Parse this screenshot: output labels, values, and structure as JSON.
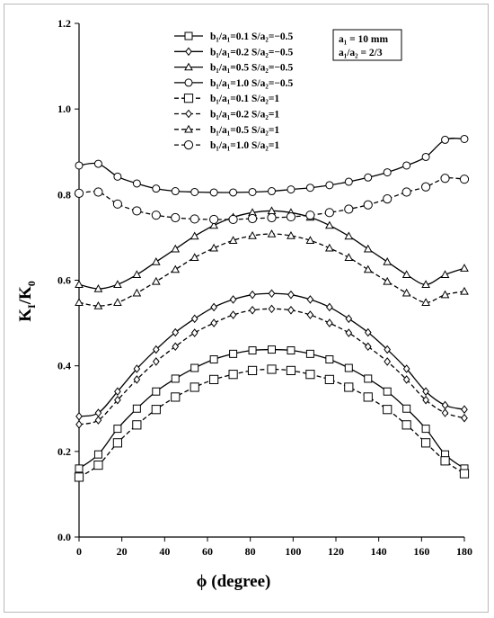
{
  "chart_data": {
    "type": "line",
    "xlabel": "ϕ (degree)",
    "ylabel_main": "K",
    "ylabel_sub1": "I",
    "ylabel_slash": "/K",
    "ylabel_sub2": "0",
    "xlim": [
      0,
      180
    ],
    "ylim": [
      0.0,
      1.2
    ],
    "x_ticks": [
      0,
      20,
      40,
      60,
      80,
      100,
      120,
      140,
      160,
      180
    ],
    "y_ticks": [
      "0.0",
      "0.2",
      "0.4",
      "0.6",
      "0.8",
      "1.0",
      "1.2"
    ],
    "grid": false,
    "legend_position": "top-center",
    "annotation_lines": [
      "a₁ = 10 mm",
      "a₁/a₂ = 2/3"
    ],
    "x": [
      0,
      9,
      18,
      27,
      36,
      45,
      54,
      63,
      72,
      81,
      90,
      99,
      108,
      117,
      126,
      135,
      144,
      153,
      162,
      171,
      180
    ],
    "series": [
      {
        "name": "b₁/a₁=0.1  S/a₂=−0.5",
        "marker": "square",
        "dashed": false,
        "values": [
          0.16,
          0.193,
          0.253,
          0.3,
          0.34,
          0.37,
          0.395,
          0.415,
          0.428,
          0.436,
          0.438,
          0.436,
          0.428,
          0.415,
          0.395,
          0.37,
          0.34,
          0.3,
          0.253,
          0.193,
          0.16
        ]
      },
      {
        "name": "b₁/a₁=0.2  S/a₂=−0.5",
        "marker": "diamond",
        "dashed": false,
        "values": [
          0.282,
          0.29,
          0.34,
          0.393,
          0.438,
          0.478,
          0.51,
          0.537,
          0.555,
          0.566,
          0.569,
          0.566,
          0.555,
          0.537,
          0.51,
          0.478,
          0.438,
          0.393,
          0.34,
          0.308,
          0.298
        ]
      },
      {
        "name": "b₁/a₁=0.5  S/a₂=−0.5",
        "marker": "triangle",
        "dashed": false,
        "values": [
          0.59,
          0.58,
          0.59,
          0.613,
          0.643,
          0.673,
          0.703,
          0.728,
          0.747,
          0.758,
          0.762,
          0.758,
          0.747,
          0.728,
          0.703,
          0.673,
          0.643,
          0.613,
          0.59,
          0.613,
          0.628
        ]
      },
      {
        "name": "b₁/a₁=1.0  S/a₂=−0.5",
        "marker": "circle",
        "dashed": false,
        "values": [
          0.868,
          0.872,
          0.842,
          0.826,
          0.814,
          0.808,
          0.806,
          0.805,
          0.805,
          0.806,
          0.808,
          0.812,
          0.816,
          0.822,
          0.83,
          0.84,
          0.852,
          0.868,
          0.888,
          0.928,
          0.93
        ]
      },
      {
        "name": "b₁/a₁=0.1  S/a₂=1",
        "marker": "square",
        "dashed": true,
        "values": [
          0.14,
          0.168,
          0.22,
          0.262,
          0.298,
          0.327,
          0.35,
          0.368,
          0.38,
          0.389,
          0.392,
          0.389,
          0.38,
          0.368,
          0.35,
          0.327,
          0.298,
          0.262,
          0.22,
          0.178,
          0.148
        ]
      },
      {
        "name": "b₁/a₁=0.2  S/a₂=1",
        "marker": "diamond",
        "dashed": true,
        "values": [
          0.263,
          0.273,
          0.32,
          0.368,
          0.41,
          0.445,
          0.477,
          0.5,
          0.519,
          0.53,
          0.533,
          0.53,
          0.519,
          0.5,
          0.477,
          0.445,
          0.41,
          0.368,
          0.32,
          0.29,
          0.278
        ]
      },
      {
        "name": "b₁/a₁=0.5  S/a₂=1",
        "marker": "triangle",
        "dashed": true,
        "values": [
          0.548,
          0.54,
          0.548,
          0.57,
          0.597,
          0.625,
          0.653,
          0.675,
          0.693,
          0.704,
          0.708,
          0.704,
          0.693,
          0.675,
          0.653,
          0.625,
          0.597,
          0.57,
          0.548,
          0.566,
          0.574
        ]
      },
      {
        "name": "b₁/a₁=1.0  S/a₂=1",
        "marker": "circle",
        "dashed": true,
        "values": [
          0.803,
          0.806,
          0.778,
          0.762,
          0.752,
          0.746,
          0.743,
          0.742,
          0.742,
          0.744,
          0.746,
          0.748,
          0.752,
          0.758,
          0.766,
          0.776,
          0.79,
          0.806,
          0.818,
          0.838,
          0.836
        ]
      }
    ]
  }
}
